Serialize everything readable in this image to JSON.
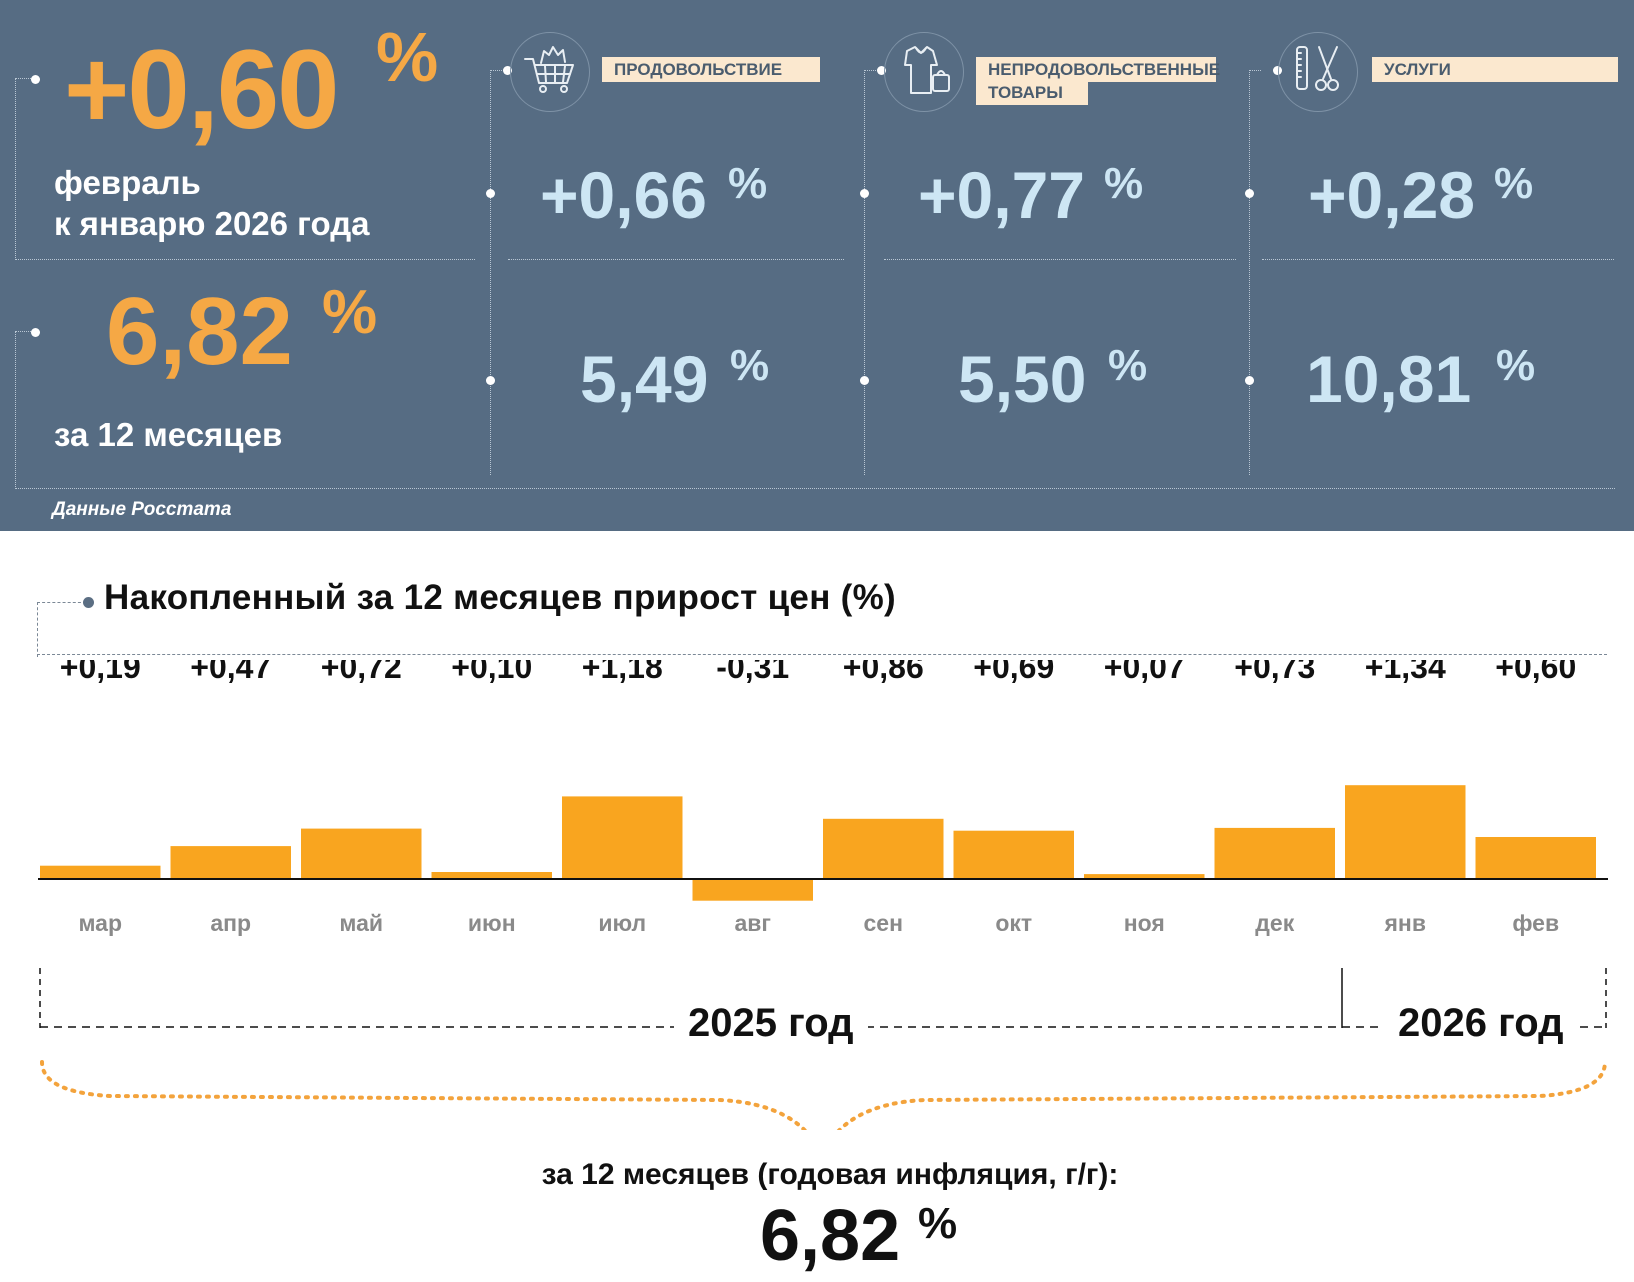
{
  "headline": {
    "monthly_value": "+0,60",
    "monthly_unit": "%",
    "monthly_caption_line1": "февраль",
    "monthly_caption_line2": "к январю 2026 года",
    "annual_value": "6,82",
    "annual_unit": "%",
    "annual_caption": "за 12 месяцев"
  },
  "categories": [
    {
      "name": "ПРОДОВОЛЬСТВИЕ",
      "icon": "shopping-cart-icon",
      "monthly": "+0,66",
      "annual": "5,49",
      "unit": "%"
    },
    {
      "name_line1": "НЕПРОДОВОЛЬСТВЕННЫЕ",
      "name_line2": "ТОВАРЫ",
      "icon": "clothes-bag-icon",
      "monthly": "+0,77",
      "annual": "5,50",
      "unit": "%"
    },
    {
      "name": "УСЛУГИ",
      "icon": "comb-scissors-icon",
      "monthly": "+0,28",
      "annual": "10,81",
      "unit": "%"
    }
  ],
  "source": "Данные Росстата",
  "chart_data": {
    "type": "bar",
    "title": "Накопленный за 12 месяцев прирост цен (%)",
    "categories": [
      "мар",
      "апр",
      "май",
      "июн",
      "июл",
      "авг",
      "сен",
      "окт",
      "ноя",
      "дек",
      "янв",
      "фев"
    ],
    "values": [
      0.19,
      0.47,
      0.72,
      0.1,
      1.18,
      -0.31,
      0.86,
      0.69,
      0.07,
      0.73,
      1.34,
      0.6
    ],
    "value_labels": [
      "+0,19",
      "+0,47",
      "+0,72",
      "+0,10",
      "+1,18",
      "-0,31",
      "+0,86",
      "+0,69",
      "+0,07",
      "+0,73",
      "+1,34",
      "+0,60"
    ],
    "bar_color": "#f9a51f",
    "years": [
      "2025 год",
      "2026 год"
    ],
    "grid": false
  },
  "summary": {
    "label": "за 12 месяцев (годовая инфляция, г/г):",
    "value": "6,82",
    "unit": "%"
  },
  "colors": {
    "panel": "#566c83",
    "accent_orange": "#f5a845",
    "light_blue": "#cde6f4",
    "bar": "#f9a51f"
  }
}
